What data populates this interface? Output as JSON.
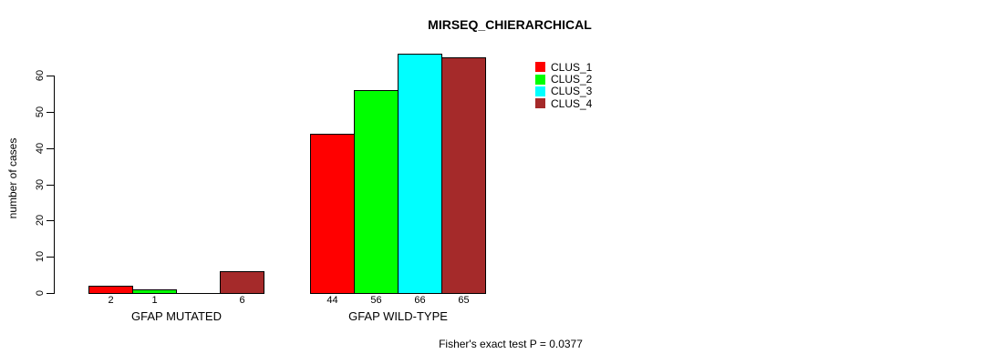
{
  "title": "MIRSEQ_CHIERARCHICAL",
  "y_axis_label": "number of cases",
  "footer_note": "Fisher's exact test P = 0.0377",
  "chart_data": {
    "type": "bar",
    "title": "MIRSEQ_CHIERARCHICAL",
    "xlabel": "",
    "ylabel": "number of cases",
    "categories": [
      "GFAP MUTATED",
      "GFAP WILD-TYPE"
    ],
    "series": [
      {
        "name": "CLUS_1",
        "color": "#FF0000",
        "values": [
          2,
          44
        ]
      },
      {
        "name": "CLUS_2",
        "color": "#00FF00",
        "values": [
          1,
          56
        ]
      },
      {
        "name": "CLUS_3",
        "color": "#00FFFF",
        "values": [
          0,
          66
        ]
      },
      {
        "name": "CLUS_4",
        "color": "#A52A2A",
        "values": [
          6,
          65
        ]
      }
    ],
    "bar_value_labels": [
      [
        "2",
        "1",
        "",
        "6"
      ],
      [
        "44",
        "56",
        "66",
        "65"
      ]
    ],
    "yticks": [
      0,
      10,
      20,
      30,
      40,
      50,
      60
    ],
    "ylim": [
      0,
      66
    ],
    "grid": false,
    "legend_position": "top-right",
    "annotation": "Fisher's exact test P = 0.0377"
  }
}
